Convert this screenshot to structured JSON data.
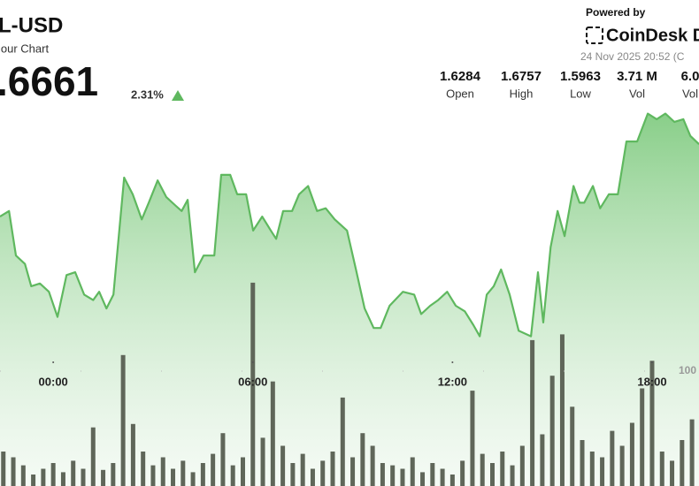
{
  "header": {
    "symbol": "L-USD",
    "subtitle": "lour Chart",
    "price": ".6661",
    "change": "2.31%",
    "powered": "Powered by",
    "brand": "CoinDesk D",
    "timestamp": "24 Nov 2025 20:52 (C",
    "stats": [
      {
        "value": "1.6284",
        "label": "Open"
      },
      {
        "value": "1.6757",
        "label": "High"
      },
      {
        "value": "1.5963",
        "label": "Low"
      },
      {
        "value": "3.71 M",
        "label": "Vol"
      },
      {
        "value": "6.0",
        "label": "Vol"
      }
    ]
  },
  "chart_data": {
    "type": "line",
    "x": [
      -1.6,
      -1.33,
      -1.12,
      -0.85,
      -0.66,
      -0.4,
      -0.13,
      0.13,
      0.4,
      0.66,
      0.93,
      1.2,
      1.38,
      1.6,
      1.81,
      2.13,
      2.39,
      2.66,
      2.87,
      3.14,
      3.4,
      3.67,
      3.86,
      4.04,
      4.26,
      4.52,
      4.84,
      5.05,
      5.32,
      5.53,
      5.8,
      6.01,
      6.28,
      6.54,
      6.7,
      6.91,
      7.18,
      7.39,
      7.66,
      7.93,
      8.19,
      8.46,
      8.83,
      9.1,
      9.36,
      9.63,
      9.84,
      10.11,
      10.51,
      10.85,
      11.06,
      11.33,
      11.57,
      11.84,
      12.1,
      12.37,
      12.63,
      12.82,
      13.03,
      13.24,
      13.46,
      13.72,
      13.99,
      14.36,
      14.57,
      14.73,
      14.95,
      15.16,
      15.37,
      15.64,
      15.82,
      15.96,
      16.22,
      16.44,
      16.7,
      16.97,
      17.23,
      17.55,
      17.87,
      18.14,
      18.4,
      18.67,
      18.94,
      19.15,
      19.41
    ],
    "series": [
      {
        "color": "#5fb85f",
        "values": [
          1.639,
          1.641,
          1.625,
          1.622,
          1.614,
          1.615,
          1.612,
          1.603,
          1.618,
          1.619,
          1.611,
          1.609,
          1.612,
          1.606,
          1.611,
          1.653,
          1.647,
          1.638,
          1.644,
          1.652,
          1.646,
          1.643,
          1.641,
          1.645,
          1.619,
          1.625,
          1.625,
          1.654,
          1.654,
          1.647,
          1.647,
          1.634,
          1.639,
          1.634,
          1.631,
          1.641,
          1.641,
          1.647,
          1.65,
          1.641,
          1.642,
          1.638,
          1.634,
          1.62,
          1.606,
          1.599,
          1.599,
          1.607,
          1.612,
          1.611,
          1.604,
          1.607,
          1.609,
          1.612,
          1.607,
          1.605,
          1.6,
          1.596,
          1.611,
          1.614,
          1.62,
          1.611,
          1.598,
          1.596,
          1.619,
          1.601,
          1.628,
          1.641,
          1.632,
          1.65,
          1.644,
          1.644,
          1.65,
          1.642,
          1.647,
          1.647,
          1.666,
          1.666,
          1.676,
          1.674,
          1.676,
          1.673,
          1.674,
          1.668,
          1.665
        ]
      },
      {
        "type": "bar",
        "axis": "y2",
        "color": "#5f6659",
        "x": [
          -1.5,
          -1.2,
          -0.9,
          -0.6,
          -0.3,
          0,
          0.3,
          0.6,
          0.9,
          1.2,
          1.5,
          1.8,
          2.1,
          2.4,
          2.7,
          3.0,
          3.3,
          3.6,
          3.9,
          4.2,
          4.5,
          4.8,
          5.1,
          5.4,
          5.7,
          6.0,
          6.3,
          6.6,
          6.9,
          7.2,
          7.5,
          7.8,
          8.1,
          8.4,
          8.7,
          9.0,
          9.3,
          9.6,
          9.9,
          10.2,
          10.5,
          10.8,
          11.1,
          11.4,
          11.7,
          12.0,
          12.3,
          12.6,
          12.9,
          13.2,
          13.5,
          13.8,
          14.1,
          14.4,
          14.7,
          15.0,
          15.3,
          15.6,
          15.9,
          16.2,
          16.5,
          16.8,
          17.1,
          17.4,
          17.7,
          18.0,
          18.3,
          18.6,
          18.9,
          19.2
        ],
        "values": [
          30,
          25,
          18,
          10,
          15,
          20,
          12,
          22,
          15,
          51,
          14,
          20,
          114,
          54,
          30,
          18,
          25,
          15,
          22,
          12,
          20,
          28,
          46,
          18,
          25,
          177,
          42,
          91,
          35,
          20,
          28,
          15,
          22,
          30,
          77,
          25,
          46,
          35,
          20,
          18,
          15,
          25,
          12,
          20,
          15,
          10,
          22,
          83,
          28,
          20,
          30,
          18,
          35,
          127,
          45,
          96,
          132,
          69,
          40,
          30,
          25,
          48,
          35,
          55,
          85,
          109,
          30,
          22,
          40,
          58
        ]
      }
    ],
    "xlim": [
      -1.6,
      19.41
    ],
    "xticks": [
      {
        "value": 0,
        "label": "00:00"
      },
      {
        "value": 6,
        "label": "06:00"
      },
      {
        "value": 12,
        "label": "12:00"
      },
      {
        "value": 18,
        "label": "18:00"
      }
    ],
    "ylim": [
      1.54,
      1.68
    ],
    "y2lim": [
      0,
      300
    ],
    "y2ticks": [
      100
    ]
  }
}
